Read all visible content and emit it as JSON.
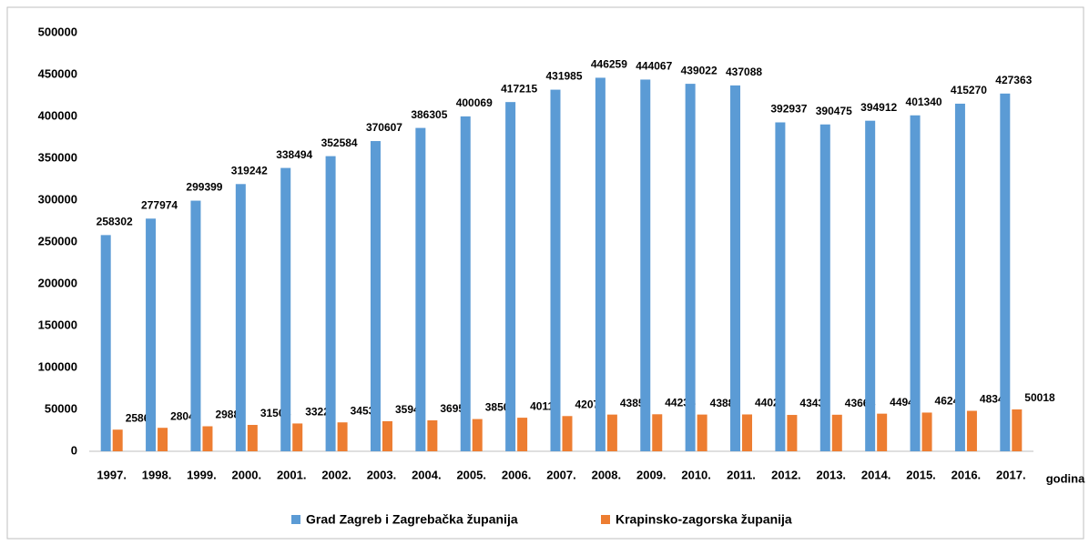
{
  "chart_data": {
    "type": "bar",
    "x_label": "godina",
    "categories": [
      "1997.",
      "1998.",
      "1999.",
      "2000.",
      "2001.",
      "2002.",
      "2003.",
      "2004.",
      "2005.",
      "2006.",
      "2007.",
      "2008.",
      "2009.",
      "2010.",
      "2011.",
      "2012.",
      "2013.",
      "2014.",
      "2015.",
      "2016.",
      "2017."
    ],
    "series": [
      {
        "name": "Grad Zagreb i Zagrebačka županija",
        "color": "#5b9bd5",
        "values": [
          258302,
          277974,
          299399,
          319242,
          338494,
          352584,
          370607,
          386305,
          400069,
          417215,
          431985,
          446259,
          444067,
          439022,
          437088,
          392937,
          390475,
          394912,
          401340,
          415270,
          427363
        ]
      },
      {
        "name": "Krapinsko-zagorska županija",
        "color": "#ed7d31",
        "values": [
          25865,
          28041,
          29881,
          31504,
          33226,
          34536,
          35949,
          36953,
          38503,
          40115,
          42078,
          43858,
          44234,
          43880,
          44028,
          43439,
          43664,
          44944,
          46249,
          48345,
          50018
        ]
      }
    ],
    "ylim": [
      0,
      500000
    ],
    "yticks": [
      0,
      50000,
      100000,
      150000,
      200000,
      250000,
      300000,
      350000,
      400000,
      450000,
      500000
    ],
    "grid": false,
    "legend": "bottom"
  }
}
